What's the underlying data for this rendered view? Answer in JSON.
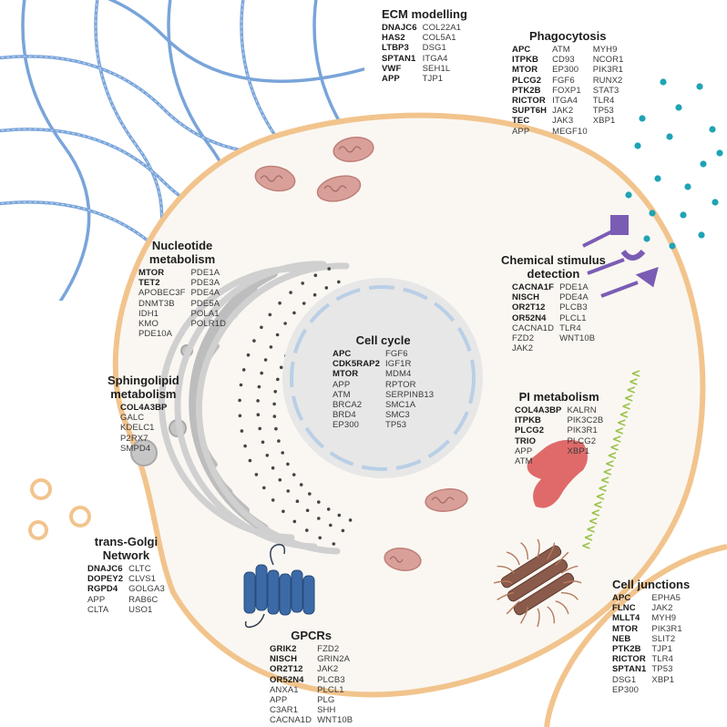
{
  "panels": [
    {
      "id": "ecm",
      "title": "ECM modelling",
      "col1": [
        {
          "g": "DNAJC6",
          "b": true
        },
        {
          "g": "HAS2",
          "b": true
        },
        {
          "g": "LTBP3",
          "b": true
        },
        {
          "g": "SPTAN1",
          "b": true
        },
        {
          "g": "VWF",
          "b": true
        },
        {
          "g": "APP",
          "b": true
        }
      ],
      "col2": [
        {
          "g": "COL22A1"
        },
        {
          "g": "COL5A1"
        },
        {
          "g": "DSG1"
        },
        {
          "g": "ITGA4"
        },
        {
          "g": "SEH1L"
        },
        {
          "g": "TJP1"
        }
      ]
    },
    {
      "id": "phagocytosis",
      "title": "Phagocytosis",
      "col1": [
        {
          "g": "APC",
          "b": true
        },
        {
          "g": "ITPKB",
          "b": true
        },
        {
          "g": "MTOR",
          "b": true
        },
        {
          "g": "PLCG2",
          "b": true
        },
        {
          "g": "PTK2B",
          "b": true
        },
        {
          "g": "RICTOR",
          "b": true
        },
        {
          "g": "SUPT6H",
          "b": true
        },
        {
          "g": "TEC",
          "b": true
        },
        {
          "g": "APP"
        }
      ],
      "col2": [
        {
          "g": "ATM"
        },
        {
          "g": "CD93"
        },
        {
          "g": "EP300"
        },
        {
          "g": "FGF6"
        },
        {
          "g": "FOXP1"
        },
        {
          "g": "ITGA4"
        },
        {
          "g": "JAK2"
        },
        {
          "g": "JAK3"
        },
        {
          "g": "MEGF10"
        }
      ],
      "col3": [
        {
          "g": "MYH9"
        },
        {
          "g": "NCOR1"
        },
        {
          "g": "PIK3R1"
        },
        {
          "g": "RUNX2"
        },
        {
          "g": "STAT3"
        },
        {
          "g": "TLR4"
        },
        {
          "g": "TP53"
        },
        {
          "g": "XBP1"
        }
      ]
    },
    {
      "id": "nucleotide",
      "title": "Nucleotide\nmetabolism",
      "col1": [
        {
          "g": "MTOR",
          "b": true
        },
        {
          "g": "TET2",
          "b": true
        },
        {
          "g": "APOBEC3F"
        },
        {
          "g": "DNMT3B"
        },
        {
          "g": "IDH1"
        },
        {
          "g": "KMO"
        },
        {
          "g": "PDE10A"
        }
      ],
      "col2": [
        {
          "g": "PDE1A"
        },
        {
          "g": "PDE3A"
        },
        {
          "g": "PDE4A"
        },
        {
          "g": "PDE5A"
        },
        {
          "g": "POLA1"
        },
        {
          "g": "POLR1D"
        }
      ]
    },
    {
      "id": "chemical",
      "title": "Chemical stimulus\ndetection",
      "col1": [
        {
          "g": "CACNA1F",
          "b": true
        },
        {
          "g": "NISCH",
          "b": true
        },
        {
          "g": "OR2T12",
          "b": true
        },
        {
          "g": "OR52N4",
          "b": true
        },
        {
          "g": "CACNA1D"
        },
        {
          "g": "FZD2"
        },
        {
          "g": "JAK2"
        }
      ],
      "col2": [
        {
          "g": "PDE1A"
        },
        {
          "g": "PDE4A"
        },
        {
          "g": "PLCB3"
        },
        {
          "g": "PLCL1"
        },
        {
          "g": "TLR4"
        },
        {
          "g": "WNT10B"
        }
      ]
    },
    {
      "id": "cellcycle",
      "title": "Cell cycle",
      "col1": [
        {
          "g": "APC",
          "b": true
        },
        {
          "g": "CDK5RAP2",
          "b": true
        },
        {
          "g": "MTOR",
          "b": true
        },
        {
          "g": "APP"
        },
        {
          "g": "ATM"
        },
        {
          "g": "BRCA2"
        },
        {
          "g": "BRD4"
        },
        {
          "g": "EP300"
        }
      ],
      "col2": [
        {
          "g": "FGF6"
        },
        {
          "g": "IGF1R"
        },
        {
          "g": "MDM4"
        },
        {
          "g": "RPTOR"
        },
        {
          "g": "SERPINB13"
        },
        {
          "g": "SMC1A"
        },
        {
          "g": "SMC3"
        },
        {
          "g": "TP53"
        }
      ]
    },
    {
      "id": "sphingolipid",
      "title": "Sphingolipid\nmetabolism",
      "col1": [
        {
          "g": "COL4A3BP",
          "b": true
        },
        {
          "g": "GALC"
        },
        {
          "g": "KDELC1"
        },
        {
          "g": "P2RX7"
        },
        {
          "g": "SMPD4"
        }
      ]
    },
    {
      "id": "pi",
      "title": "PI metabolism",
      "col1": [
        {
          "g": "COL4A3BP",
          "b": true
        },
        {
          "g": "ITPKB",
          "b": true
        },
        {
          "g": "PLCG2",
          "b": true
        },
        {
          "g": "TRIO",
          "b": true
        },
        {
          "g": "APP"
        },
        {
          "g": "ATM"
        }
      ],
      "col2": [
        {
          "g": "KALRN"
        },
        {
          "g": "PIK3C2B"
        },
        {
          "g": "PIK3R1"
        },
        {
          "g": "PLCG2"
        },
        {
          "g": "XBP1"
        }
      ]
    },
    {
      "id": "transgolgi",
      "title": "trans-Golgi\nNetwork",
      "col1": [
        {
          "g": "DNAJC6",
          "b": true
        },
        {
          "g": "DOPEY2",
          "b": true
        },
        {
          "g": "RGPD4",
          "b": true
        },
        {
          "g": "APP"
        },
        {
          "g": "CLTA"
        }
      ],
      "col2": [
        {
          "g": "CLTC"
        },
        {
          "g": "CLVS1"
        },
        {
          "g": "GOLGA3"
        },
        {
          "g": "RAB6C"
        },
        {
          "g": "USO1"
        }
      ]
    },
    {
      "id": "gpcrs",
      "title": "GPCRs",
      "col1": [
        {
          "g": "GRIK2",
          "b": true
        },
        {
          "g": "NISCH",
          "b": true
        },
        {
          "g": "OR2T12",
          "b": true
        },
        {
          "g": "OR52N4",
          "b": true
        },
        {
          "g": "ANXA1"
        },
        {
          "g": "APP"
        },
        {
          "g": "C3AR1"
        },
        {
          "g": "CACNA1D"
        }
      ],
      "col2": [
        {
          "g": "FZD2"
        },
        {
          "g": "GRIN2A"
        },
        {
          "g": "JAK2"
        },
        {
          "g": "PLCB3"
        },
        {
          "g": "PLCL1"
        },
        {
          "g": "PLG"
        },
        {
          "g": "SHH"
        },
        {
          "g": "WNT10B"
        }
      ]
    },
    {
      "id": "junctions",
      "title": "Cell junctions",
      "col1": [
        {
          "g": "APC",
          "b": true
        },
        {
          "g": "FLNC",
          "b": true
        },
        {
          "g": "MLLT4",
          "b": true
        },
        {
          "g": "MTOR",
          "b": true
        },
        {
          "g": "NEB",
          "b": true
        },
        {
          "g": "PTK2B",
          "b": true
        },
        {
          "g": "RICTOR",
          "b": true
        },
        {
          "g": "SPTAN1",
          "b": true
        },
        {
          "g": "DSG1"
        },
        {
          "g": "EP300"
        }
      ],
      "col2": [
        {
          "g": "EPHA5"
        },
        {
          "g": "JAK2"
        },
        {
          "g": "MYH9"
        },
        {
          "g": "PIK3R1"
        },
        {
          "g": "SLIT2"
        },
        {
          "g": "TJP1"
        },
        {
          "g": "TLR4"
        },
        {
          "g": "TP53"
        },
        {
          "g": "XBP1"
        }
      ]
    }
  ],
  "colors": {
    "membrane": "#f2c48d",
    "cytoplasm": "#faf7f2",
    "ecm_fiber": "#6b9bd6",
    "nucleus": "#e7e7e7",
    "nuclear_envelope": "#b9cfe6",
    "golgi": "#cfcfcf",
    "mitochondria": "#d9a09a",
    "gpcr": "#3c6aa6",
    "receptor": "#7b5cb5",
    "pi_protein": "#e06a6a",
    "junction": "#8a5a4a",
    "stimulus_dots": "#1fa3b5"
  }
}
